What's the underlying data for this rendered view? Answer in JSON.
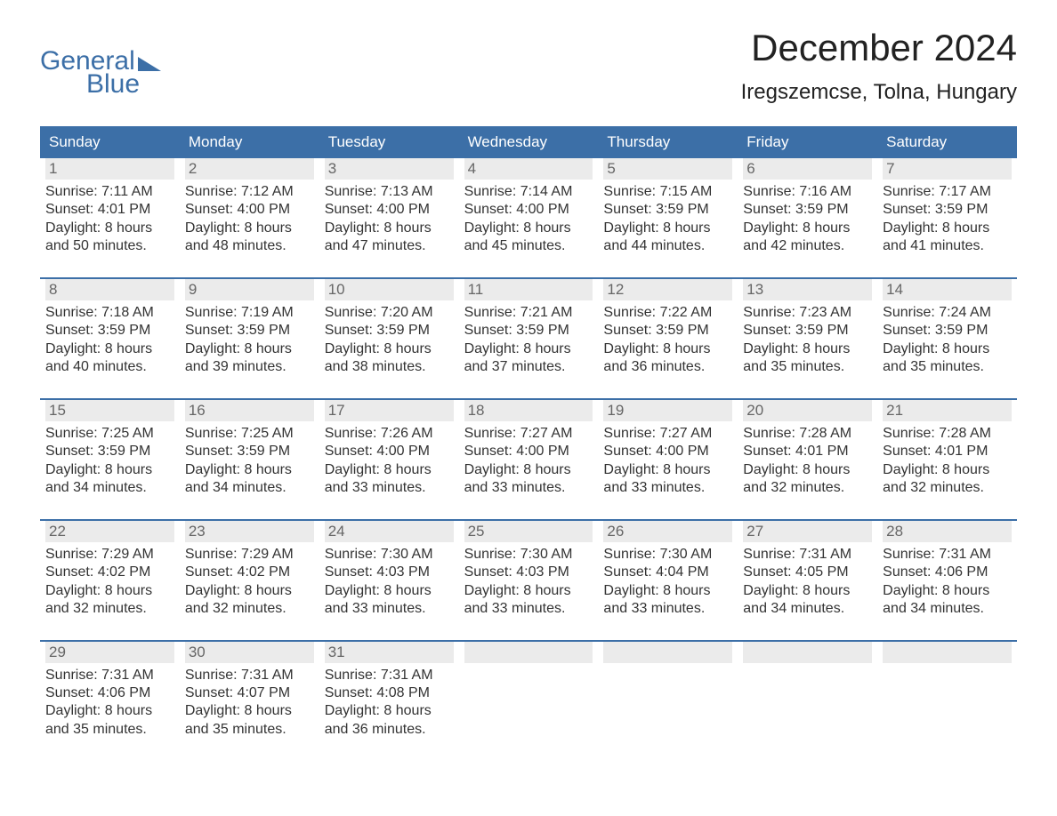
{
  "brand": {
    "word1": "General",
    "word2": "Blue",
    "color": "#3c6fa7"
  },
  "title": "December 2024",
  "location": "Iregszemcse, Tolna, Hungary",
  "colors": {
    "header_bg": "#3c6fa7",
    "header_text": "#ffffff",
    "daynum_bg": "#ebebeb",
    "daynum_text": "#666666",
    "body_text": "#333333",
    "page_bg": "#ffffff",
    "week_border": "#3c6fa7"
  },
  "typography": {
    "title_fontsize": 42,
    "location_fontsize": 24,
    "header_fontsize": 17,
    "body_fontsize": 16
  },
  "day_names": [
    "Sunday",
    "Monday",
    "Tuesday",
    "Wednesday",
    "Thursday",
    "Friday",
    "Saturday"
  ],
  "weeks": [
    [
      {
        "n": "1",
        "sr": "Sunrise: 7:11 AM",
        "ss": "Sunset: 4:01 PM",
        "d1": "Daylight: 8 hours",
        "d2": "and 50 minutes."
      },
      {
        "n": "2",
        "sr": "Sunrise: 7:12 AM",
        "ss": "Sunset: 4:00 PM",
        "d1": "Daylight: 8 hours",
        "d2": "and 48 minutes."
      },
      {
        "n": "3",
        "sr": "Sunrise: 7:13 AM",
        "ss": "Sunset: 4:00 PM",
        "d1": "Daylight: 8 hours",
        "d2": "and 47 minutes."
      },
      {
        "n": "4",
        "sr": "Sunrise: 7:14 AM",
        "ss": "Sunset: 4:00 PM",
        "d1": "Daylight: 8 hours",
        "d2": "and 45 minutes."
      },
      {
        "n": "5",
        "sr": "Sunrise: 7:15 AM",
        "ss": "Sunset: 3:59 PM",
        "d1": "Daylight: 8 hours",
        "d2": "and 44 minutes."
      },
      {
        "n": "6",
        "sr": "Sunrise: 7:16 AM",
        "ss": "Sunset: 3:59 PM",
        "d1": "Daylight: 8 hours",
        "d2": "and 42 minutes."
      },
      {
        "n": "7",
        "sr": "Sunrise: 7:17 AM",
        "ss": "Sunset: 3:59 PM",
        "d1": "Daylight: 8 hours",
        "d2": "and 41 minutes."
      }
    ],
    [
      {
        "n": "8",
        "sr": "Sunrise: 7:18 AM",
        "ss": "Sunset: 3:59 PM",
        "d1": "Daylight: 8 hours",
        "d2": "and 40 minutes."
      },
      {
        "n": "9",
        "sr": "Sunrise: 7:19 AM",
        "ss": "Sunset: 3:59 PM",
        "d1": "Daylight: 8 hours",
        "d2": "and 39 minutes."
      },
      {
        "n": "10",
        "sr": "Sunrise: 7:20 AM",
        "ss": "Sunset: 3:59 PM",
        "d1": "Daylight: 8 hours",
        "d2": "and 38 minutes."
      },
      {
        "n": "11",
        "sr": "Sunrise: 7:21 AM",
        "ss": "Sunset: 3:59 PM",
        "d1": "Daylight: 8 hours",
        "d2": "and 37 minutes."
      },
      {
        "n": "12",
        "sr": "Sunrise: 7:22 AM",
        "ss": "Sunset: 3:59 PM",
        "d1": "Daylight: 8 hours",
        "d2": "and 36 minutes."
      },
      {
        "n": "13",
        "sr": "Sunrise: 7:23 AM",
        "ss": "Sunset: 3:59 PM",
        "d1": "Daylight: 8 hours",
        "d2": "and 35 minutes."
      },
      {
        "n": "14",
        "sr": "Sunrise: 7:24 AM",
        "ss": "Sunset: 3:59 PM",
        "d1": "Daylight: 8 hours",
        "d2": "and 35 minutes."
      }
    ],
    [
      {
        "n": "15",
        "sr": "Sunrise: 7:25 AM",
        "ss": "Sunset: 3:59 PM",
        "d1": "Daylight: 8 hours",
        "d2": "and 34 minutes."
      },
      {
        "n": "16",
        "sr": "Sunrise: 7:25 AM",
        "ss": "Sunset: 3:59 PM",
        "d1": "Daylight: 8 hours",
        "d2": "and 34 minutes."
      },
      {
        "n": "17",
        "sr": "Sunrise: 7:26 AM",
        "ss": "Sunset: 4:00 PM",
        "d1": "Daylight: 8 hours",
        "d2": "and 33 minutes."
      },
      {
        "n": "18",
        "sr": "Sunrise: 7:27 AM",
        "ss": "Sunset: 4:00 PM",
        "d1": "Daylight: 8 hours",
        "d2": "and 33 minutes."
      },
      {
        "n": "19",
        "sr": "Sunrise: 7:27 AM",
        "ss": "Sunset: 4:00 PM",
        "d1": "Daylight: 8 hours",
        "d2": "and 33 minutes."
      },
      {
        "n": "20",
        "sr": "Sunrise: 7:28 AM",
        "ss": "Sunset: 4:01 PM",
        "d1": "Daylight: 8 hours",
        "d2": "and 32 minutes."
      },
      {
        "n": "21",
        "sr": "Sunrise: 7:28 AM",
        "ss": "Sunset: 4:01 PM",
        "d1": "Daylight: 8 hours",
        "d2": "and 32 minutes."
      }
    ],
    [
      {
        "n": "22",
        "sr": "Sunrise: 7:29 AM",
        "ss": "Sunset: 4:02 PM",
        "d1": "Daylight: 8 hours",
        "d2": "and 32 minutes."
      },
      {
        "n": "23",
        "sr": "Sunrise: 7:29 AM",
        "ss": "Sunset: 4:02 PM",
        "d1": "Daylight: 8 hours",
        "d2": "and 32 minutes."
      },
      {
        "n": "24",
        "sr": "Sunrise: 7:30 AM",
        "ss": "Sunset: 4:03 PM",
        "d1": "Daylight: 8 hours",
        "d2": "and 33 minutes."
      },
      {
        "n": "25",
        "sr": "Sunrise: 7:30 AM",
        "ss": "Sunset: 4:03 PM",
        "d1": "Daylight: 8 hours",
        "d2": "and 33 minutes."
      },
      {
        "n": "26",
        "sr": "Sunrise: 7:30 AM",
        "ss": "Sunset: 4:04 PM",
        "d1": "Daylight: 8 hours",
        "d2": "and 33 minutes."
      },
      {
        "n": "27",
        "sr": "Sunrise: 7:31 AM",
        "ss": "Sunset: 4:05 PM",
        "d1": "Daylight: 8 hours",
        "d2": "and 34 minutes."
      },
      {
        "n": "28",
        "sr": "Sunrise: 7:31 AM",
        "ss": "Sunset: 4:06 PM",
        "d1": "Daylight: 8 hours",
        "d2": "and 34 minutes."
      }
    ],
    [
      {
        "n": "29",
        "sr": "Sunrise: 7:31 AM",
        "ss": "Sunset: 4:06 PM",
        "d1": "Daylight: 8 hours",
        "d2": "and 35 minutes."
      },
      {
        "n": "30",
        "sr": "Sunrise: 7:31 AM",
        "ss": "Sunset: 4:07 PM",
        "d1": "Daylight: 8 hours",
        "d2": "and 35 minutes."
      },
      {
        "n": "31",
        "sr": "Sunrise: 7:31 AM",
        "ss": "Sunset: 4:08 PM",
        "d1": "Daylight: 8 hours",
        "d2": "and 36 minutes."
      },
      null,
      null,
      null,
      null
    ]
  ]
}
